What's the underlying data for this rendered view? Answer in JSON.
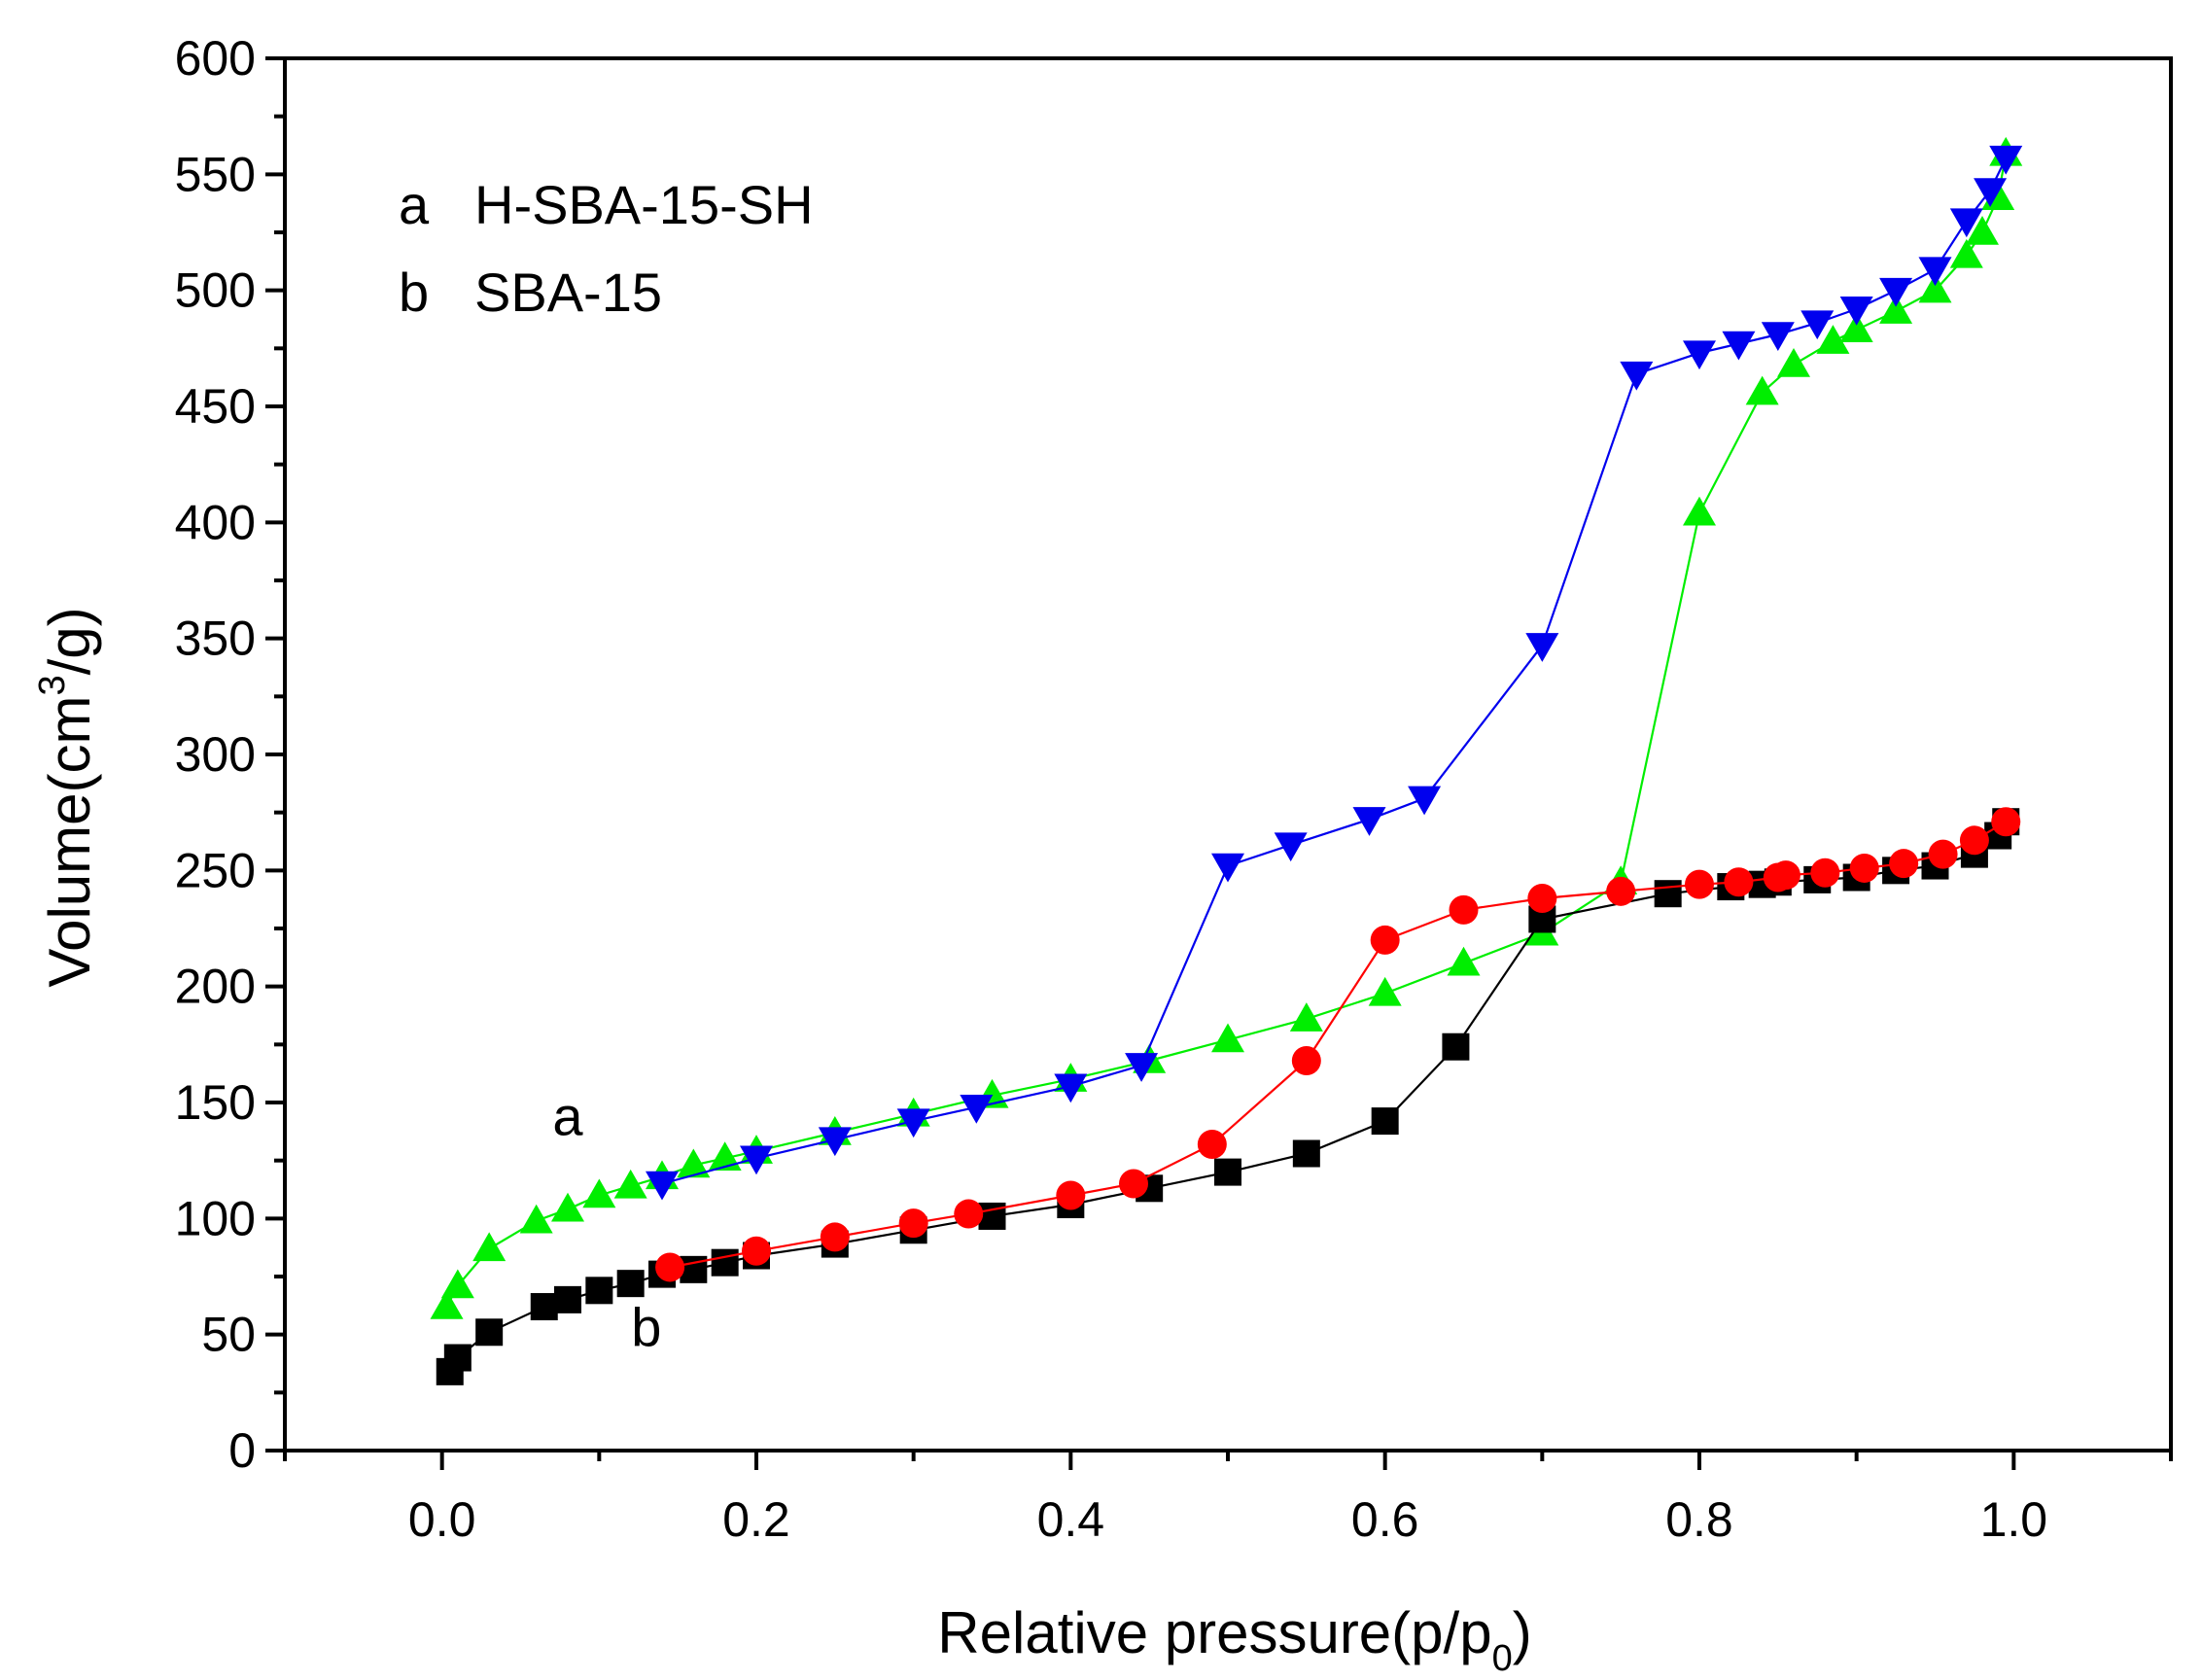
{
  "chart_data": {
    "type": "scatter",
    "title": "",
    "xlabel": "Relative pressure(p/p",
    "xlabel_sub": "0",
    "xlabel_end": ")",
    "ylabel": "Volume(cm",
    "ylabel_sup": "3",
    "ylabel_end": "/g)",
    "xlim": [
      -0.1,
      1.1
    ],
    "ylim": [
      0,
      600
    ],
    "xticks": [
      0.0,
      0.2,
      0.4,
      0.6,
      0.8,
      1.0
    ],
    "xtick_labels": [
      "0.0",
      "0.2",
      "0.4",
      "0.6",
      "0.8",
      "1.0"
    ],
    "yticks": [
      0,
      50,
      100,
      150,
      200,
      250,
      300,
      350,
      400,
      450,
      500,
      550,
      600
    ],
    "ytick_labels": [
      "0",
      "50",
      "100",
      "150",
      "200",
      "250",
      "300",
      "350",
      "400",
      "450",
      "500",
      "550",
      "600"
    ],
    "grid": false,
    "legend": {
      "position": "top-left",
      "entries": [
        {
          "key": "a",
          "label": "H-SBA-15-SH"
        },
        {
          "key": "b",
          "label": "SBA-15"
        }
      ]
    },
    "annotations": [
      {
        "text": "a",
        "x": 0.08,
        "y": 136
      },
      {
        "text": "b",
        "x": 0.13,
        "y": 45
      }
    ],
    "series": [
      {
        "name": "a adsorption",
        "marker": "triangle-up",
        "color": "#00ee00",
        "points": [
          [
            0.003,
            62
          ],
          [
            0.01,
            71
          ],
          [
            0.03,
            87
          ],
          [
            0.06,
            99
          ],
          [
            0.08,
            104
          ],
          [
            0.1,
            110
          ],
          [
            0.12,
            114
          ],
          [
            0.14,
            118
          ],
          [
            0.16,
            123
          ],
          [
            0.18,
            126
          ],
          [
            0.2,
            129
          ],
          [
            0.25,
            137
          ],
          [
            0.3,
            145
          ],
          [
            0.35,
            153
          ],
          [
            0.4,
            160
          ],
          [
            0.45,
            168
          ],
          [
            0.5,
            177
          ],
          [
            0.55,
            186
          ],
          [
            0.6,
            197
          ],
          [
            0.65,
            210
          ],
          [
            0.7,
            223
          ],
          [
            0.75,
            245
          ],
          [
            0.8,
            404
          ],
          [
            0.84,
            456
          ],
          [
            0.86,
            468
          ],
          [
            0.885,
            478
          ],
          [
            0.9,
            483
          ],
          [
            0.925,
            491
          ],
          [
            0.95,
            500
          ],
          [
            0.97,
            515
          ],
          [
            0.98,
            525
          ],
          [
            0.99,
            540
          ],
          [
            0.995,
            559
          ]
        ]
      },
      {
        "name": "a desorption",
        "marker": "triangle-down",
        "color": "#0000ee",
        "points": [
          [
            0.995,
            557
          ],
          [
            0.985,
            543
          ],
          [
            0.97,
            530
          ],
          [
            0.95,
            509
          ],
          [
            0.925,
            500
          ],
          [
            0.9,
            492
          ],
          [
            0.875,
            486
          ],
          [
            0.85,
            481
          ],
          [
            0.825,
            477
          ],
          [
            0.8,
            473
          ],
          [
            0.76,
            464
          ],
          [
            0.7,
            347
          ],
          [
            0.625,
            281
          ],
          [
            0.59,
            272
          ],
          [
            0.54,
            261
          ],
          [
            0.5,
            252
          ],
          [
            0.445,
            166
          ],
          [
            0.4,
            157
          ],
          [
            0.34,
            148
          ],
          [
            0.3,
            142
          ],
          [
            0.25,
            134
          ],
          [
            0.2,
            126
          ],
          [
            0.14,
            115
          ]
        ]
      },
      {
        "name": "b adsorption",
        "marker": "square",
        "color": "#000000",
        "points": [
          [
            0.005,
            34
          ],
          [
            0.01,
            40
          ],
          [
            0.03,
            51
          ],
          [
            0.065,
            62
          ],
          [
            0.08,
            65
          ],
          [
            0.1,
            69
          ],
          [
            0.12,
            72
          ],
          [
            0.14,
            76
          ],
          [
            0.16,
            78
          ],
          [
            0.18,
            81
          ],
          [
            0.2,
            84
          ],
          [
            0.25,
            89
          ],
          [
            0.3,
            95
          ],
          [
            0.35,
            101
          ],
          [
            0.4,
            106
          ],
          [
            0.45,
            113
          ],
          [
            0.5,
            120
          ],
          [
            0.55,
            128
          ],
          [
            0.6,
            142
          ],
          [
            0.645,
            174
          ],
          [
            0.7,
            229
          ],
          [
            0.78,
            240
          ],
          [
            0.82,
            243
          ],
          [
            0.84,
            244
          ],
          [
            0.85,
            245
          ],
          [
            0.875,
            246
          ],
          [
            0.9,
            247
          ],
          [
            0.925,
            250
          ],
          [
            0.95,
            252
          ],
          [
            0.975,
            257
          ],
          [
            0.99,
            265
          ],
          [
            0.995,
            271
          ]
        ]
      },
      {
        "name": "b desorption",
        "marker": "circle",
        "color": "#ff0000",
        "points": [
          [
            0.995,
            271
          ],
          [
            0.975,
            263
          ],
          [
            0.955,
            257
          ],
          [
            0.93,
            253
          ],
          [
            0.905,
            251
          ],
          [
            0.88,
            249
          ],
          [
            0.855,
            248
          ],
          [
            0.85,
            247
          ],
          [
            0.825,
            245
          ],
          [
            0.8,
            244
          ],
          [
            0.75,
            241
          ],
          [
            0.7,
            238
          ],
          [
            0.65,
            233
          ],
          [
            0.6,
            220
          ],
          [
            0.55,
            168
          ],
          [
            0.49,
            132
          ],
          [
            0.44,
            115
          ],
          [
            0.4,
            110
          ],
          [
            0.335,
            102
          ],
          [
            0.3,
            98
          ],
          [
            0.25,
            92
          ],
          [
            0.2,
            86
          ],
          [
            0.145,
            79
          ]
        ]
      }
    ]
  }
}
